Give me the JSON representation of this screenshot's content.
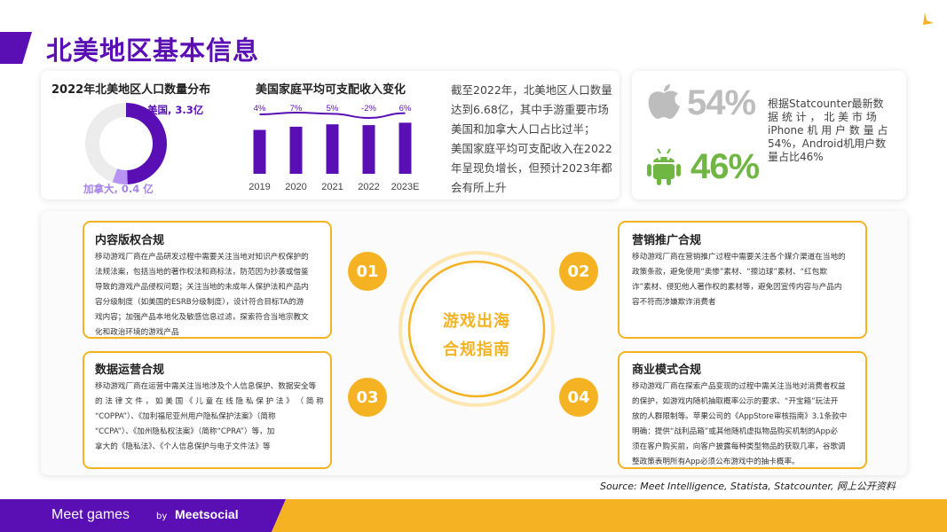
{
  "page": {
    "title": "北美地区基本信息"
  },
  "population": {
    "title": "2022年北美地区人口数量分布",
    "usa_label": "美国, 3.3亿",
    "canada_label": "加拿大, 0.4 亿"
  },
  "income_chart": {
    "title": "美国家庭平均可支配收入变化"
  },
  "summary": {
    "line1": "截至2022年，北美地区人口数量",
    "line2": "达到6.68亿，其中手游重要市场",
    "line3": "美国和加拿大人口占比过半；",
    "line4": "美国家庭平均可支配收入在2022",
    "line5": "年呈现负增长，但预计2023年都",
    "line6": "会有所上升"
  },
  "os_share": {
    "ios_pct": "54%",
    "android_pct": "46%",
    "text_line1": "根据Statcounter最新数",
    "text_line2": "据 统 计 ， 北 美 市 场",
    "text_line3": "iPhone 机 用 户 数 量 占",
    "text_line4": "54%，Android机用户数",
    "text_line5": "量占比46%"
  },
  "compliance": {
    "center_line1": "游戏出海",
    "center_line2": "合规指南",
    "items": [
      {
        "num": "01",
        "title": "内容版权合规",
        "lines": [
          "移动游戏厂商在产品研发过程中需要关注当地对知识产权保护的",
          "法规法案，包括当地的著作权法和商标法，防范因为抄袭或借鉴",
          "导致的游戏产品侵权问题；关注当地的未成年人保护法和产品内",
          "容分级制度（如美国的ESRB分级制度），设计符合目标TA的游",
          "戏内容；加强产品本地化及敏感信息过滤，探索符合当地宗教文",
          "化和政治环境的游戏产品"
        ]
      },
      {
        "num": "02",
        "title": "营销推广合规",
        "lines": [
          "移动游戏厂商在营销推广过程中需要关注各个媒介渠道在当地的",
          "政策条款，避免使用“卖惨”素材、“擦边球”素材、“红包欺",
          "诈”素材、侵犯他人著作权的素材等，避免因宣传内容与产品内",
          "容不符而涉嫌欺诈消费者"
        ]
      },
      {
        "num": "03",
        "title": "数据运营合规",
        "lines": [
          "移动游戏厂商在运营中需关注当地涉及个人信息保护、数据安全等",
          "的 法 律 文 件 ， 如 美 国 《 儿 童 在 线 隐 私 保 护 法 》 （ 简 称",
          "“COPPA”）、《加利福尼亚州用户隐私保护法案》（简称",
          "“CCPA”）、《加州隐私权法案》（简称“CPRA”）等，加",
          "拿大的《隐私法》、《个人信息保护与电子文件法》等"
        ]
      },
      {
        "num": "04",
        "title": "商业模式合规",
        "lines": [
          "移动游戏厂商在探索产品变现的过程中需关注当地对消费者权益",
          "的保护，如游戏内随机抽取概率公示的要求、“开宝箱”玩法开",
          "放的人群限制等。苹果公司的《AppStore审核指南》3.1条款中",
          "明确：提供“战利品箱”或其他随机虚拟物品购买机制的App必",
          "须在客户购买前，向客户披露每种类型物品的获取几率，谷歌调",
          "整政策表明所有App必须公布游戏中的抽卡概率。"
        ]
      }
    ]
  },
  "source": "Source: Meet Intelligence, Statista, Statcounter, 网上公开资料",
  "footer": {
    "logo_left": "Meet games",
    "by": "by",
    "logo_right": "Meetsocial"
  },
  "colors": {
    "purple": "#5a0fb4",
    "light_purple": "#b794f4",
    "ring_gray": "#ececec",
    "orange": "#f5b323",
    "green": "#6fb742",
    "gray": "#bdbdbd"
  },
  "chart_data": [
    {
      "type": "pie",
      "title": "2022年北美地区人口数量分布",
      "labels": [
        "美国",
        "加拿大"
      ],
      "values": [
        3.3,
        0.4
      ],
      "unit": "亿",
      "total_reference": 6.68
    },
    {
      "type": "bar",
      "title": "美国家庭平均可支配收入变化",
      "categories": [
        "2019",
        "2020",
        "2021",
        "2022",
        "2023E"
      ],
      "values": [
        55,
        59,
        62,
        61,
        64
      ],
      "growth": [
        "4%",
        "7%",
        "5%",
        "-2%",
        "6%"
      ],
      "growth_values": [
        4,
        7,
        5,
        -2,
        6
      ],
      "ylim": [
        0,
        80
      ]
    }
  ]
}
